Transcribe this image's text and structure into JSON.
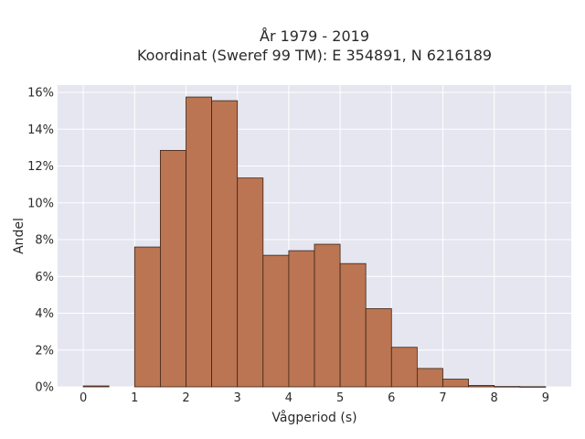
{
  "chart_data": {
    "type": "bar",
    "title": "År 1979 - 2019",
    "subtitle": "Koordinat (Sweref 99 TM): E 354891, N 6216189",
    "xlabel": "Vågperiod (s)",
    "ylabel": "Andel",
    "xlim": [
      -0.5,
      9.5
    ],
    "ylim": [
      0,
      16.4
    ],
    "x_ticks": [
      0,
      1,
      2,
      3,
      4,
      5,
      6,
      7,
      8,
      9
    ],
    "x_tick_labels": [
      "0",
      "1",
      "2",
      "3",
      "4",
      "5",
      "6",
      "7",
      "8",
      "9"
    ],
    "y_ticks": [
      0,
      2,
      4,
      6,
      8,
      10,
      12,
      14,
      16
    ],
    "y_tick_labels": [
      "0%",
      "2%",
      "4%",
      "6%",
      "8%",
      "10%",
      "12%",
      "14%",
      "16%"
    ],
    "bin_width": 0.5,
    "bins": [
      {
        "start": 0.0,
        "value": 0.05
      },
      {
        "start": 0.5,
        "value": 0.0
      },
      {
        "start": 1.0,
        "value": 7.6
      },
      {
        "start": 1.5,
        "value": 12.85
      },
      {
        "start": 2.0,
        "value": 15.75
      },
      {
        "start": 2.5,
        "value": 15.55
      },
      {
        "start": 3.0,
        "value": 11.35
      },
      {
        "start": 3.5,
        "value": 7.15
      },
      {
        "start": 4.0,
        "value": 7.4
      },
      {
        "start": 4.5,
        "value": 7.75
      },
      {
        "start": 5.0,
        "value": 6.7
      },
      {
        "start": 5.5,
        "value": 4.25
      },
      {
        "start": 6.0,
        "value": 2.15
      },
      {
        "start": 6.5,
        "value": 1.0
      },
      {
        "start": 7.0,
        "value": 0.42
      },
      {
        "start": 7.5,
        "value": 0.08
      },
      {
        "start": 8.0,
        "value": 0.02
      },
      {
        "start": 8.5,
        "value": 0.01
      }
    ],
    "colors": {
      "bar_fill": "#bb7552",
      "bar_edge": "#3d2418",
      "plot_background": "#e5e6ef",
      "grid": "#ffffff"
    },
    "grid": true,
    "legend": "none"
  }
}
